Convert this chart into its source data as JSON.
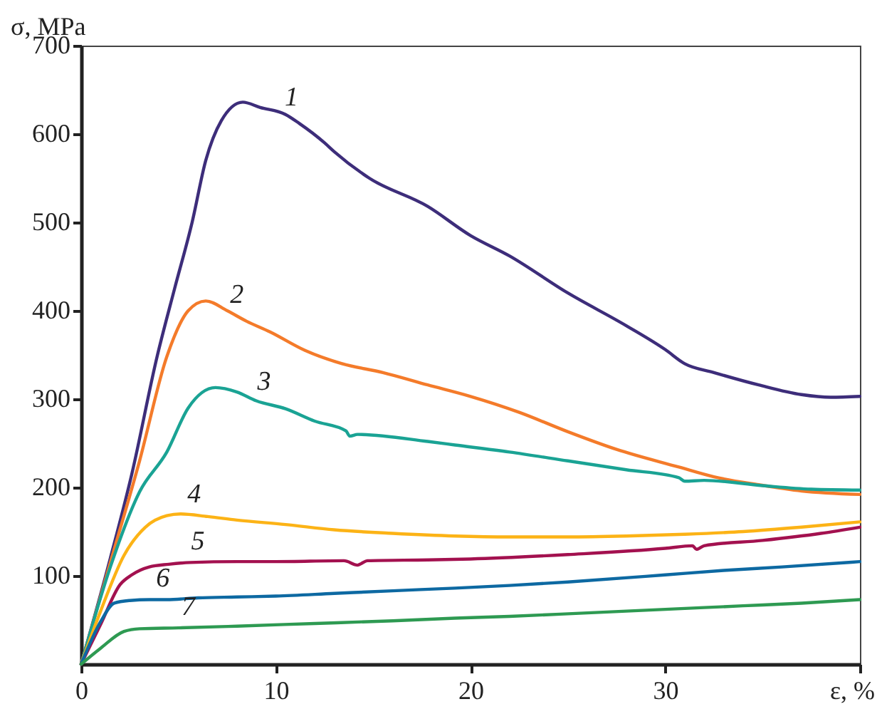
{
  "chart_data": {
    "type": "line",
    "xlabel": "ε, %",
    "ylabel": "σ, MPa",
    "xlim": [
      0,
      40
    ],
    "ylim": [
      0,
      700
    ],
    "xticks": [
      0,
      10,
      20,
      30,
      {
        "value": 40,
        "label": null
      }
    ],
    "yticks": [
      100,
      200,
      300,
      400,
      500,
      600,
      700
    ],
    "grid": false,
    "legend": false,
    "marker": "none",
    "line_style": "solid",
    "series": [
      {
        "name": "1",
        "color": "#3d2d7a",
        "x": [
          0,
          1.5,
          2.6,
          3.9,
          4.8,
          5.7,
          6.4,
          7.2,
          8.3,
          9.2,
          10.5,
          11.2,
          12.5,
          13,
          14.8,
          17.8,
          20,
          22,
          25,
          28,
          30,
          31,
          32.5,
          34.8,
          37,
          38.5,
          40
        ],
        "values": [
          0,
          120,
          215,
          348,
          425,
          500,
          570,
          615,
          636,
          630,
          622,
          612,
          590,
          580,
          550,
          518,
          485,
          462,
          420,
          383,
          356,
          340,
          330,
          316,
          305,
          302,
          303
        ]
      },
      {
        "name": "2",
        "color": "#f47b2a",
        "x": [
          0,
          1.5,
          3,
          4.4,
          5.5,
          6.4,
          7.5,
          8.5,
          9.7,
          11.5,
          13.4,
          15.5,
          17.8,
          20,
          22.5,
          25,
          27.5,
          30.7,
          32.5,
          34.8,
          37,
          40
        ],
        "values": [
          0,
          115,
          230,
          348,
          400,
          411,
          400,
          388,
          376,
          355,
          340,
          330,
          316,
          303,
          285,
          263,
          243,
          223,
          212,
          203,
          196,
          192
        ]
      },
      {
        "name": "3",
        "color": "#1aa394",
        "x": [
          0,
          1.5,
          3,
          4.4,
          5.5,
          6.9,
          8,
          9,
          10.5,
          12,
          13.6,
          13.8,
          14.2,
          17.8,
          19.2,
          22,
          25,
          28,
          30.7,
          31,
          32,
          35,
          37.5,
          40
        ],
        "values": [
          0,
          110,
          195,
          240,
          290,
          313,
          308,
          298,
          289,
          275,
          264,
          258,
          260,
          252,
          248,
          240,
          230,
          220,
          211,
          207,
          208,
          202,
          198,
          197
        ]
      },
      {
        "name": "4",
        "color": "#fcb316",
        "x": [
          0,
          1,
          2.2,
          3.3,
          4.4,
          5.1,
          6.5,
          8,
          10.5,
          13,
          16,
          19.2,
          22,
          25,
          28,
          31,
          34,
          37,
          40
        ],
        "values": [
          0,
          60,
          123,
          155,
          168,
          170,
          167,
          163,
          158,
          152,
          148,
          145,
          144,
          144,
          145,
          147,
          150,
          155,
          161
        ]
      },
      {
        "name": "5",
        "color": "#a3114f",
        "x": [
          0,
          1,
          2,
          2.6,
          3.5,
          4.5,
          5.6,
          8,
          10,
          13.5,
          14.2,
          14.4,
          14.7,
          17.8,
          20,
          25,
          30,
          31.4,
          31.6,
          32,
          35,
          38,
          40
        ],
        "values": [
          0,
          45,
          90,
          101,
          110,
          113,
          115,
          116,
          116,
          117,
          112,
          114,
          117,
          118,
          119,
          124,
          131,
          134,
          130,
          134,
          140,
          148,
          155
        ]
      },
      {
        "name": "6",
        "color": "#0d69a2",
        "x": [
          0,
          1,
          1.7,
          2.5,
          3.5,
          4.4,
          6,
          8,
          10,
          13,
          16,
          19.2,
          22,
          25,
          30,
          33,
          36,
          40
        ],
        "values": [
          0,
          48,
          69,
          72,
          73,
          73,
          75,
          76,
          77,
          80,
          83,
          86,
          89,
          93,
          101,
          106,
          110,
          116
        ]
      },
      {
        "name": "7",
        "color": "#2e9a52",
        "x": [
          0,
          1,
          2.2,
          3,
          5,
          8,
          12,
          16,
          19.2,
          22,
          26,
          30,
          34,
          37,
          40
        ],
        "values": [
          0,
          18,
          37,
          40,
          41,
          43,
          46,
          49,
          52,
          54,
          58,
          62,
          66,
          69,
          73
        ]
      }
    ]
  }
}
